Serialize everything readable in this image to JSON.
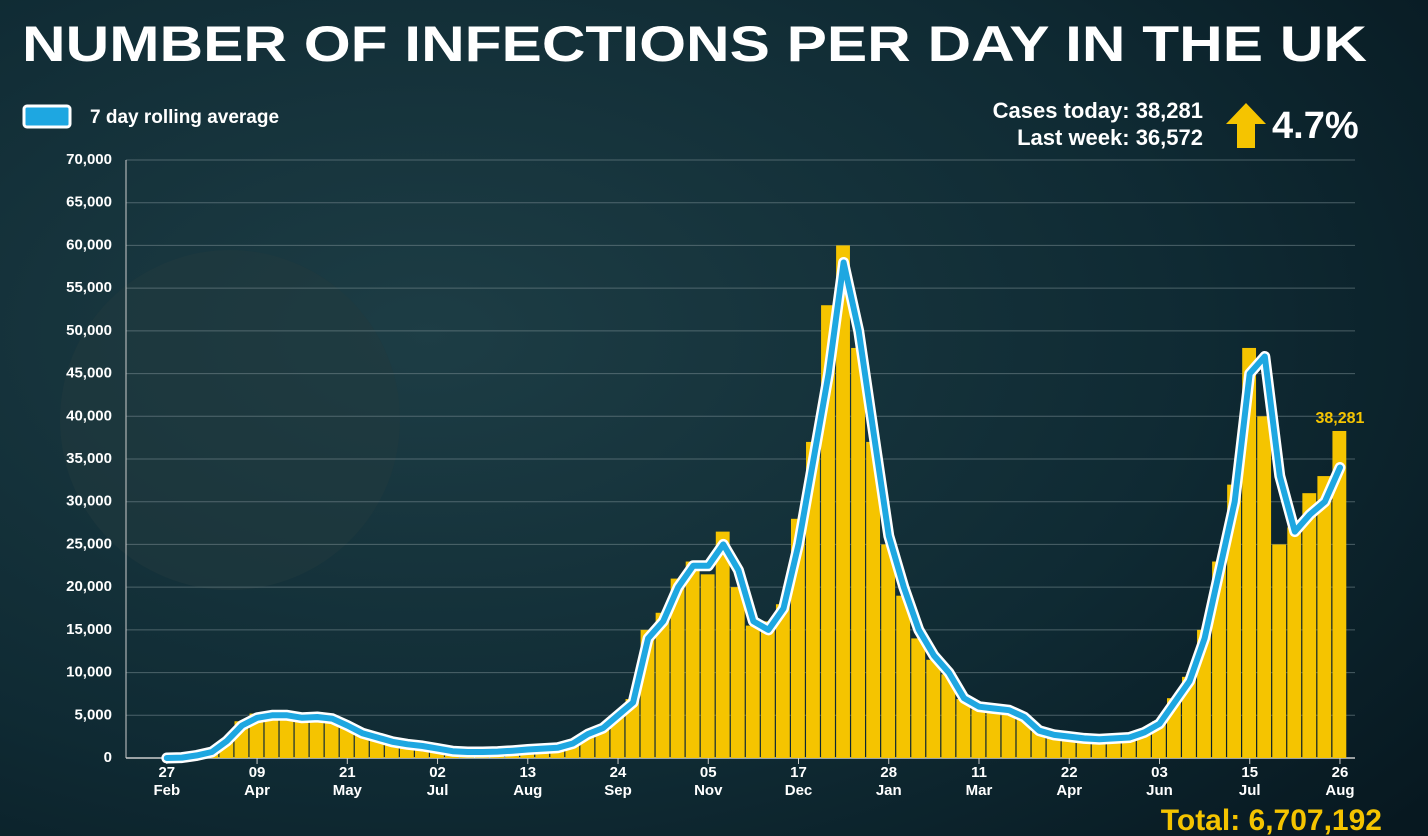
{
  "chart_data": {
    "type": "bar",
    "title": "NUMBER OF INFECTIONS PER DAY IN THE UK",
    "cases_today": "Cases today: 38,281",
    "last_week": "Last week: 36,572",
    "change": "4.7%",
    "total": "Total: 6,707,192",
    "x": [
      0,
      7,
      14,
      21,
      28,
      35,
      42,
      49,
      56,
      63,
      70,
      77,
      84,
      91,
      98,
      105,
      112,
      119,
      126,
      133,
      140,
      147,
      154,
      161,
      168,
      175,
      182,
      189,
      196,
      203,
      210,
      217,
      224,
      231,
      238,
      245,
      252,
      259,
      266,
      273,
      280,
      287,
      294,
      301,
      308,
      315,
      322,
      329,
      336,
      343,
      350,
      357,
      364,
      371,
      378,
      385,
      392,
      399,
      406,
      413,
      420,
      427,
      434,
      441,
      448,
      455,
      462,
      469,
      476,
      483,
      490,
      497,
      504,
      511,
      518,
      525,
      532,
      539,
      546
    ],
    "series": [
      {
        "type": "bar",
        "color": "#f5c400",
        "values": [
          0,
          40,
          250,
          700,
          2100,
          4300,
          5200,
          5100,
          4900,
          4600,
          4900,
          4500,
          3600,
          2700,
          2300,
          1800,
          1500,
          1300,
          1000,
          700,
          650,
          700,
          800,
          900,
          1000,
          1050,
          1150,
          1800,
          3000,
          3400,
          4900,
          6900,
          15000,
          17000,
          21000,
          23000,
          21500,
          26500,
          20000,
          15500,
          16000,
          18000,
          28000,
          37000,
          53000,
          60000,
          48000,
          37000,
          25000,
          19000,
          14000,
          11500,
          9800,
          6900,
          5700,
          5900,
          5500,
          4500,
          3100,
          2600,
          2400,
          2200,
          2100,
          2300,
          2500,
          3200,
          4300,
          7000,
          9500,
          15000,
          23000,
          32000,
          48000,
          40000,
          25000,
          27000,
          31000,
          33000,
          38281
        ],
        "value_labels": [
          null,
          null,
          null,
          null,
          null,
          null,
          null,
          null,
          null,
          null,
          null,
          null,
          null,
          null,
          null,
          null,
          null,
          null,
          null,
          null,
          null,
          null,
          null,
          null,
          null,
          null,
          null,
          null,
          null,
          null,
          null,
          null,
          null,
          null,
          null,
          null,
          null,
          null,
          null,
          null,
          null,
          null,
          null,
          null,
          null,
          null,
          null,
          null,
          null,
          null,
          null,
          null,
          null,
          null,
          null,
          null,
          null,
          null,
          null,
          null,
          null,
          null,
          null,
          null,
          null,
          null,
          null,
          null,
          null,
          null,
          null,
          null,
          null,
          null,
          null,
          null,
          null,
          null,
          "38,281"
        ]
      },
      {
        "type": "line",
        "name": "7 day rolling average",
        "color": "#1ea7e1",
        "values": [
          0,
          50,
          300,
          700,
          2000,
          3800,
          4700,
          5000,
          5000,
          4700,
          4800,
          4600,
          3800,
          2900,
          2400,
          1900,
          1600,
          1400,
          1100,
          800,
          700,
          700,
          750,
          850,
          1000,
          1100,
          1200,
          1700,
          2800,
          3500,
          5000,
          6500,
          14000,
          16000,
          20000,
          22500,
          22500,
          25000,
          22000,
          16000,
          15000,
          17500,
          25000,
          35000,
          45000,
          58000,
          50000,
          38000,
          26000,
          20000,
          15000,
          12000,
          10000,
          7000,
          6000,
          5800,
          5600,
          4800,
          3200,
          2700,
          2500,
          2300,
          2200,
          2300,
          2400,
          3000,
          4000,
          6500,
          9000,
          14000,
          22000,
          30000,
          45000,
          47000,
          33000,
          26500,
          28500,
          30000,
          34000
        ]
      }
    ],
    "xlim": [
      -19,
      553
    ],
    "xticks": [
      {
        "value": 0,
        "label": "27",
        "month": "Feb"
      },
      {
        "value": 42,
        "label": "09",
        "month": "Apr"
      },
      {
        "value": 84,
        "label": "21",
        "month": "May"
      },
      {
        "value": 126,
        "label": "02",
        "month": "Jul"
      },
      {
        "value": 168,
        "label": "13",
        "month": "Aug"
      },
      {
        "value": 210,
        "label": "24",
        "month": "Sep"
      },
      {
        "value": 252,
        "label": "05",
        "month": "Nov"
      },
      {
        "value": 294,
        "label": "17",
        "month": "Dec"
      },
      {
        "value": 336,
        "label": "28",
        "month": "Jan"
      },
      {
        "value": 378,
        "label": "11",
        "month": "Mar"
      },
      {
        "value": 420,
        "label": "22",
        "month": "Apr"
      },
      {
        "value": 462,
        "label": "03",
        "month": "Jun"
      },
      {
        "value": 504,
        "label": "15",
        "month": "Jul"
      },
      {
        "value": 546,
        "label": "26",
        "month": "Aug"
      }
    ],
    "ylim": [
      0,
      70000
    ],
    "yticks": [
      0,
      {
        "value": 5000,
        "label": "5,000"
      },
      {
        "value": 10000,
        "label": "10,000"
      },
      {
        "value": 15000,
        "label": "15,000"
      },
      {
        "value": 20000,
        "label": "20,000"
      },
      {
        "value": 25000,
        "label": "25,000"
      },
      {
        "value": 30000,
        "label": "30,000"
      },
      {
        "value": 35000,
        "label": "35,000"
      },
      {
        "value": 40000,
        "label": "40,000"
      },
      {
        "value": 45000,
        "label": "45,000"
      },
      {
        "value": 50000,
        "label": "50,000"
      },
      {
        "value": 55000,
        "label": "55,000"
      },
      {
        "value": 60000,
        "label": "60,000"
      },
      {
        "value": 65000,
        "label": "65,000"
      },
      {
        "value": 70000,
        "label": "70,000"
      }
    ],
    "grid": true
  }
}
